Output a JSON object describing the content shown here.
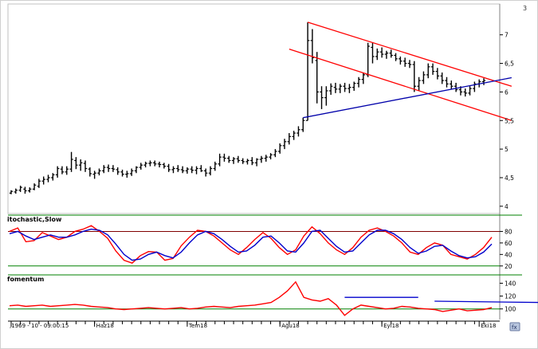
{
  "corner_label": "3",
  "colors": {
    "frame": "#606060",
    "candle": "#000000",
    "trend_red": "#ff0000",
    "trend_blue": "#0000aa",
    "stoch_k": "#ff0000",
    "stoch_d": "#0000cc",
    "stoch_band": "#800000",
    "stoch_band_low": "#008000",
    "momentum": "#ff0000",
    "momentum_base": "#008000",
    "momentum_blue": "#0000cc"
  },
  "chart_data": [
    {
      "type": "candlestick",
      "title": "",
      "ylabel": "",
      "y_ticks": [
        "4",
        "4,5",
        "5",
        "5,5",
        "6",
        "6,5",
        "7"
      ],
      "ylim": [
        3.9,
        7.4
      ],
      "ohlc": [
        [
          4.23,
          4.28,
          4.21,
          4.26
        ],
        [
          4.25,
          4.31,
          4.22,
          4.28
        ],
        [
          4.28,
          4.36,
          4.25,
          4.33
        ],
        [
          4.3,
          4.34,
          4.22,
          4.27
        ],
        [
          4.27,
          4.33,
          4.24,
          4.3
        ],
        [
          4.3,
          4.4,
          4.28,
          4.37
        ],
        [
          4.35,
          4.48,
          4.32,
          4.44
        ],
        [
          4.44,
          4.52,
          4.38,
          4.47
        ],
        [
          4.47,
          4.55,
          4.42,
          4.5
        ],
        [
          4.5,
          4.58,
          4.45,
          4.55
        ],
        [
          4.55,
          4.7,
          4.5,
          4.66
        ],
        [
          4.65,
          4.7,
          4.56,
          4.6
        ],
        [
          4.6,
          4.7,
          4.55,
          4.65
        ],
        [
          4.65,
          4.95,
          4.6,
          4.82
        ],
        [
          4.8,
          4.86,
          4.65,
          4.72
        ],
        [
          4.72,
          4.82,
          4.62,
          4.76
        ],
        [
          4.75,
          4.8,
          4.6,
          4.66
        ],
        [
          4.65,
          4.68,
          4.52,
          4.57
        ],
        [
          4.56,
          4.62,
          4.48,
          4.58
        ],
        [
          4.58,
          4.66,
          4.54,
          4.62
        ],
        [
          4.62,
          4.72,
          4.58,
          4.68
        ],
        [
          4.68,
          4.73,
          4.6,
          4.66
        ],
        [
          4.66,
          4.72,
          4.6,
          4.65
        ],
        [
          4.64,
          4.68,
          4.55,
          4.6
        ],
        [
          4.6,
          4.64,
          4.52,
          4.56
        ],
        [
          4.56,
          4.62,
          4.5,
          4.57
        ],
        [
          4.57,
          4.66,
          4.53,
          4.62
        ],
        [
          4.62,
          4.7,
          4.58,
          4.68
        ],
        [
          4.68,
          4.76,
          4.64,
          4.72
        ],
        [
          4.72,
          4.78,
          4.68,
          4.75
        ],
        [
          4.75,
          4.8,
          4.7,
          4.76
        ],
        [
          4.76,
          4.8,
          4.7,
          4.74
        ],
        [
          4.74,
          4.78,
          4.68,
          4.73
        ],
        [
          4.73,
          4.76,
          4.66,
          4.7
        ],
        [
          4.7,
          4.74,
          4.6,
          4.64
        ],
        [
          4.64,
          4.7,
          4.58,
          4.66
        ],
        [
          4.66,
          4.72,
          4.6,
          4.64
        ],
        [
          4.64,
          4.7,
          4.58,
          4.62
        ],
        [
          4.62,
          4.68,
          4.57,
          4.65
        ],
        [
          4.65,
          4.7,
          4.58,
          4.63
        ],
        [
          4.63,
          4.7,
          4.56,
          4.66
        ],
        [
          4.66,
          4.72,
          4.6,
          4.62
        ],
        [
          4.62,
          4.66,
          4.52,
          4.58
        ],
        [
          4.58,
          4.7,
          4.54,
          4.66
        ],
        [
          4.66,
          4.78,
          4.62,
          4.74
        ],
        [
          4.74,
          4.92,
          4.7,
          4.86
        ],
        [
          4.86,
          4.92,
          4.78,
          4.84
        ],
        [
          4.84,
          4.88,
          4.76,
          4.8
        ],
        [
          4.8,
          4.86,
          4.74,
          4.83
        ],
        [
          4.83,
          4.88,
          4.76,
          4.8
        ],
        [
          4.8,
          4.84,
          4.74,
          4.78
        ],
        [
          4.78,
          4.83,
          4.73,
          4.8
        ],
        [
          4.8,
          4.86,
          4.72,
          4.76
        ],
        [
          4.76,
          4.84,
          4.7,
          4.82
        ],
        [
          4.82,
          4.88,
          4.76,
          4.84
        ],
        [
          4.84,
          4.9,
          4.78,
          4.86
        ],
        [
          4.86,
          4.93,
          4.82,
          4.9
        ],
        [
          4.9,
          5.0,
          4.86,
          4.96
        ],
        [
          4.96,
          5.1,
          4.92,
          5.06
        ],
        [
          5.06,
          5.18,
          5.0,
          5.13
        ],
        [
          5.13,
          5.28,
          5.08,
          5.22
        ],
        [
          5.22,
          5.32,
          5.16,
          5.28
        ],
        [
          5.28,
          5.4,
          5.22,
          5.34
        ],
        [
          5.34,
          5.55,
          5.3,
          5.5
        ],
        [
          5.5,
          7.22,
          5.5,
          6.9
        ],
        [
          6.9,
          7.1,
          6.5,
          6.6
        ],
        [
          6.55,
          6.7,
          5.8,
          6.0
        ],
        [
          6.0,
          6.1,
          5.7,
          5.9
        ],
        [
          5.9,
          6.1,
          5.76,
          6.02
        ],
        [
          6.02,
          6.15,
          5.95,
          6.1
        ],
        [
          6.08,
          6.16,
          5.98,
          6.05
        ],
        [
          6.05,
          6.14,
          5.98,
          6.1
        ],
        [
          6.1,
          6.16,
          6.0,
          6.06
        ],
        [
          6.06,
          6.14,
          5.98,
          6.08
        ],
        [
          6.08,
          6.18,
          6.02,
          6.15
        ],
        [
          6.15,
          6.26,
          6.08,
          6.22
        ],
        [
          6.22,
          6.34,
          6.14,
          6.3
        ],
        [
          6.3,
          6.86,
          6.26,
          6.8
        ],
        [
          6.78,
          6.86,
          6.5,
          6.62
        ],
        [
          6.62,
          6.76,
          6.56,
          6.7
        ],
        [
          6.7,
          6.78,
          6.6,
          6.66
        ],
        [
          6.66,
          6.72,
          6.58,
          6.68
        ],
        [
          6.68,
          6.74,
          6.6,
          6.64
        ],
        [
          6.64,
          6.68,
          6.54,
          6.58
        ],
        [
          6.58,
          6.62,
          6.48,
          6.54
        ],
        [
          6.54,
          6.6,
          6.44,
          6.5
        ],
        [
          6.5,
          6.56,
          6.42,
          6.48
        ],
        [
          6.48,
          6.54,
          6.0,
          6.1
        ],
        [
          6.1,
          6.26,
          6.02,
          6.2
        ],
        [
          6.2,
          6.36,
          6.14,
          6.3
        ],
        [
          6.3,
          6.5,
          6.24,
          6.44
        ],
        [
          6.44,
          6.5,
          6.3,
          6.36
        ],
        [
          6.36,
          6.42,
          6.22,
          6.28
        ],
        [
          6.28,
          6.34,
          6.14,
          6.2
        ],
        [
          6.2,
          6.26,
          6.08,
          6.14
        ],
        [
          6.14,
          6.2,
          6.04,
          6.1
        ],
        [
          6.1,
          6.16,
          6.0,
          6.04
        ],
        [
          6.04,
          6.1,
          5.94,
          6.0
        ],
        [
          6.0,
          6.06,
          5.92,
          5.98
        ],
        [
          5.98,
          6.1,
          5.94,
          6.06
        ],
        [
          6.06,
          6.18,
          6.0,
          6.14
        ],
        [
          6.14,
          6.22,
          6.08,
          6.18
        ],
        [
          6.18,
          6.24,
          6.12,
          6.2
        ]
      ],
      "trendlines": [
        {
          "color": "red",
          "points": [
            [
              64,
              7.22
            ],
            [
              108,
              6.1
            ]
          ]
        },
        {
          "color": "red",
          "points": [
            [
              60,
              6.75
            ],
            [
              108,
              5.5
            ]
          ]
        },
        {
          "color": "blue",
          "points": [
            [
              63,
              5.55
            ],
            [
              108,
              6.25
            ]
          ]
        }
      ],
      "x_tick_labels": [
        {
          "index": 0,
          "label": ",1969 - 10 - 09:00:15"
        },
        {
          "index": 18,
          "label": "Haz18"
        },
        {
          "index": 38,
          "label": "Tem18"
        },
        {
          "index": 58,
          "label": "Ağu18"
        },
        {
          "index": 80,
          "label": "Eyl18"
        },
        {
          "index": 101,
          "label": "Eki18"
        }
      ]
    },
    {
      "type": "line",
      "title": "itochastic,Slow",
      "y_ticks": [
        "20",
        "40",
        "60",
        "80"
      ],
      "ylim": [
        10,
        100
      ],
      "bands": [
        80,
        20
      ],
      "series": [
        {
          "color": "red",
          "values": [
            80,
            86,
            62,
            64,
            78,
            72,
            66,
            70,
            80,
            84,
            90,
            80,
            68,
            46,
            30,
            25,
            38,
            45,
            44,
            30,
            33,
            55,
            70,
            82,
            80,
            72,
            60,
            48,
            40,
            52,
            66,
            78,
            68,
            52,
            40,
            48,
            72,
            88,
            76,
            60,
            48,
            40,
            52,
            70,
            82,
            86,
            80,
            72,
            60,
            44,
            40,
            52,
            60,
            56,
            40,
            36,
            32,
            40,
            52,
            70
          ]
        },
        {
          "color": "blue",
          "values": [
            76,
            80,
            72,
            66,
            70,
            74,
            70,
            70,
            74,
            80,
            84,
            82,
            74,
            58,
            40,
            30,
            32,
            40,
            44,
            38,
            34,
            44,
            60,
            74,
            80,
            76,
            66,
            54,
            44,
            46,
            56,
            70,
            72,
            60,
            46,
            44,
            60,
            80,
            82,
            68,
            54,
            44,
            46,
            60,
            74,
            82,
            82,
            76,
            66,
            52,
            42,
            46,
            54,
            56,
            46,
            38,
            34,
            36,
            44,
            58
          ]
        }
      ]
    },
    {
      "type": "line",
      "title": "fomentum",
      "y_ticks": [
        "100",
        "120",
        "140"
      ],
      "ylim": [
        86,
        148
      ],
      "base": 100,
      "series": [
        {
          "color": "red",
          "values": [
            105,
            106,
            104,
            105,
            106,
            104,
            105,
            106,
            107,
            106,
            104,
            103,
            102,
            100,
            99,
            100,
            101,
            102,
            101,
            100,
            101,
            102,
            100,
            101,
            103,
            104,
            103,
            102,
            104,
            105,
            106,
            108,
            110,
            118,
            128,
            142,
            118,
            114,
            112,
            116,
            106,
            90,
            100,
            106,
            104,
            102,
            100,
            101,
            104,
            103,
            101,
            100,
            99,
            96,
            98,
            100,
            97,
            98,
            99,
            102
          ]
        },
        {
          "color": "blue",
          "segments": [
            [
              [
                41,
                118
              ],
              [
                50,
                118
              ]
            ],
            [
              [
                52,
                112
              ],
              [
                72,
                109
              ]
            ]
          ]
        }
      ]
    }
  ]
}
